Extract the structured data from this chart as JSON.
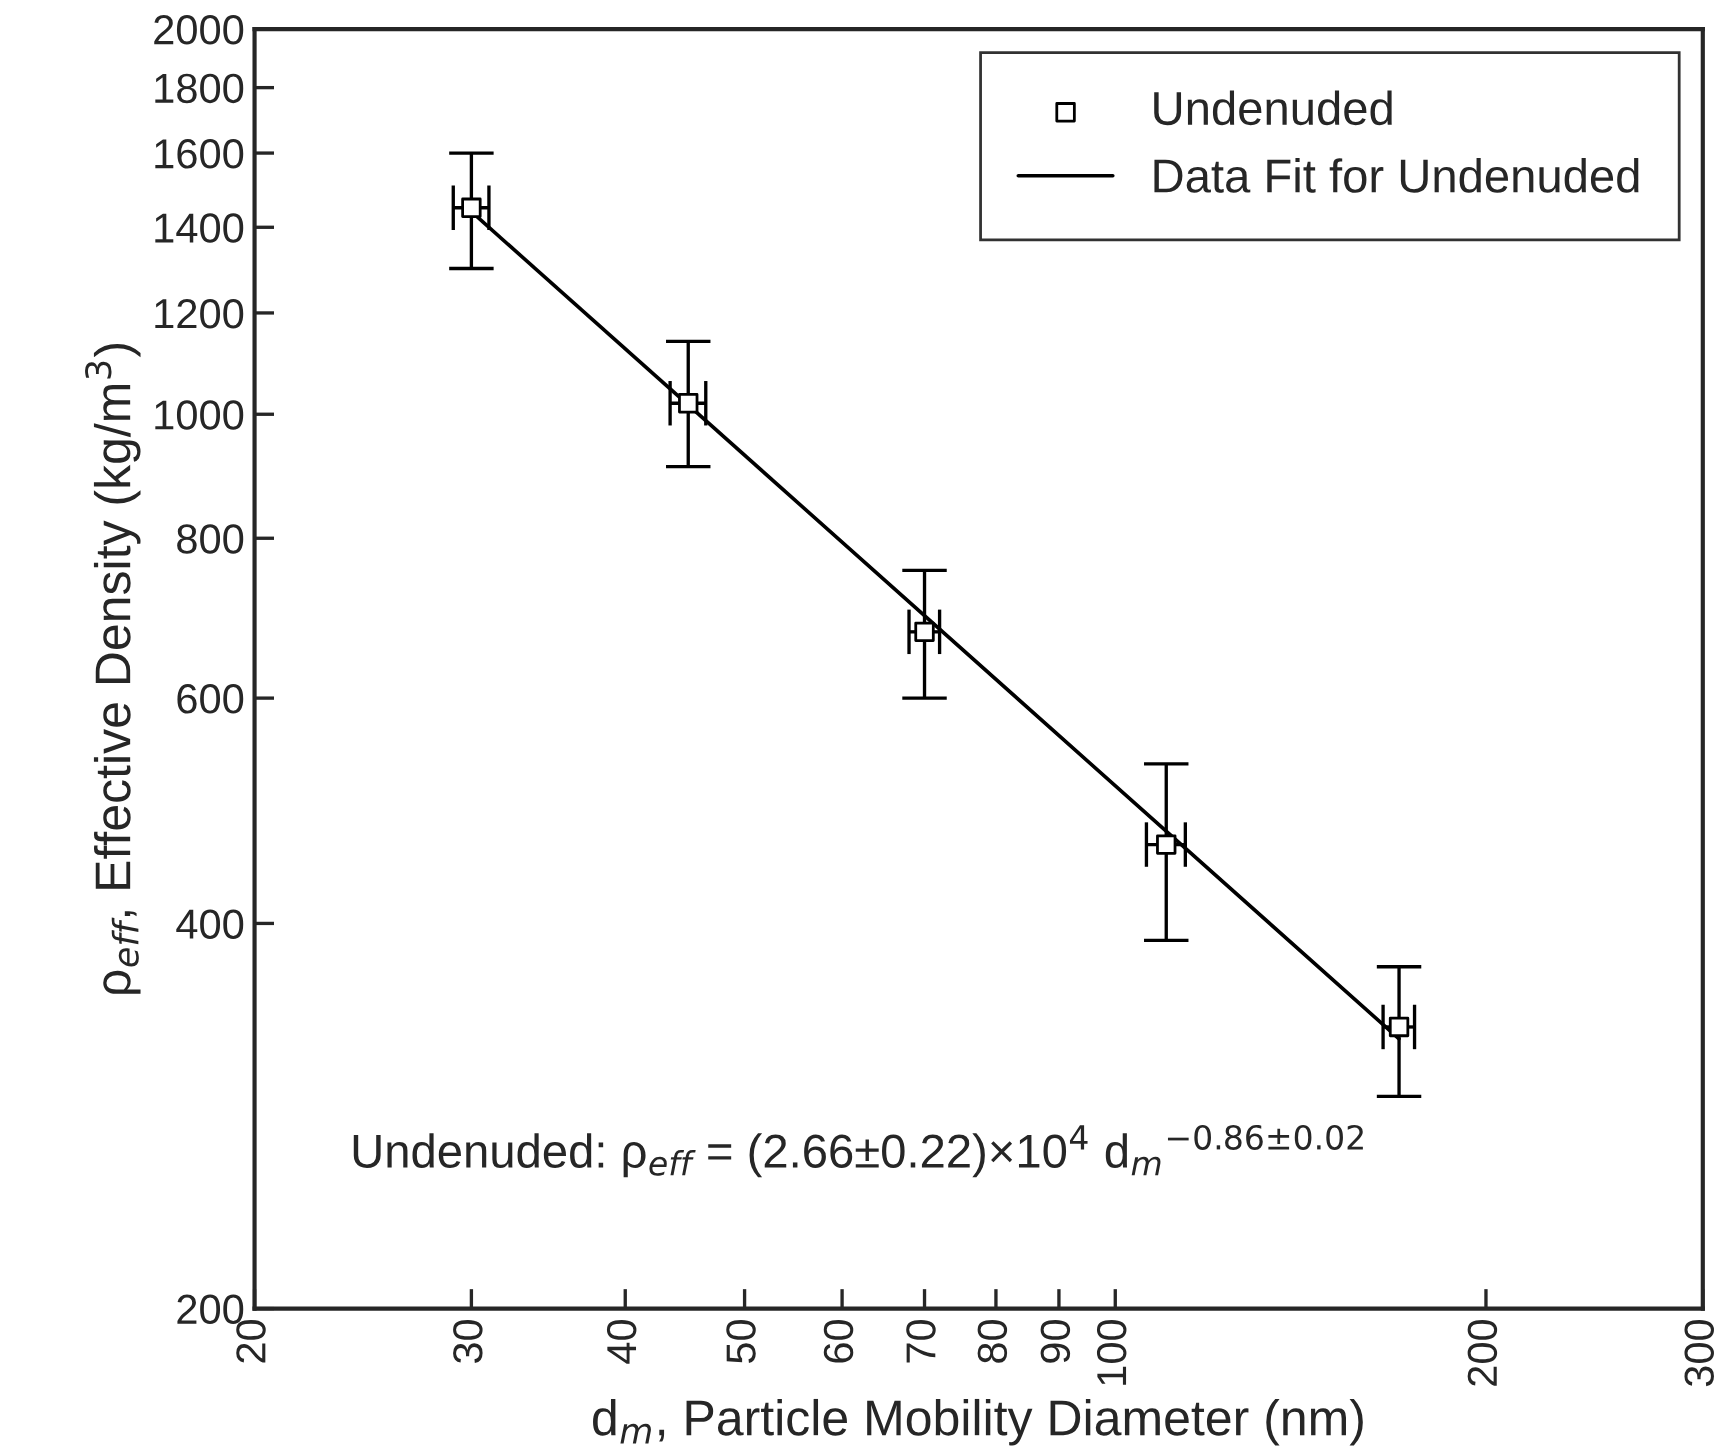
{
  "chart_data": {
    "type": "scatter",
    "xlabel": "d$_{m}$, Particle Mobility Diameter (nm)",
    "ylabel": "ρ$_{eff}$, Effective Density (kg/m$^{3}$)",
    "log": "xy",
    "xlim": [
      20,
      300
    ],
    "xticks": [
      20,
      30,
      40,
      50,
      60,
      70,
      80,
      90,
      100,
      200,
      300
    ],
    "ylim": [
      200,
      2000
    ],
    "yticks": [
      200,
      400,
      600,
      800,
      1000,
      1200,
      1400,
      1600,
      1800,
      2000
    ],
    "grid": false,
    "legend": "top right",
    "series": [
      {
        "name": "Undenuded",
        "marker": "square",
        "color": "#000000",
        "x": [
          30,
          45,
          70,
          110,
          170
        ],
        "values": [
          1450,
          1020,
          676,
          461,
          332
        ],
        "errors": [
          [
            1300,
            1600
          ],
          [
            910,
            1140
          ],
          [
            600,
            755
          ],
          [
            388,
            533
          ],
          [
            293,
            370
          ]
        ],
        "xerrors": [
          [
            29,
            31
          ],
          [
            43.5,
            46.5
          ],
          [
            68,
            72
          ],
          [
            106,
            114
          ],
          [
            165,
            175
          ]
        ]
      },
      {
        "type": "line",
        "name": "Data Fit for Undenuded",
        "color": "#000000",
        "x": [
          30,
          170
        ],
        "values": [
          1440,
          325
        ],
        "line_style": "solid"
      }
    ],
    "annotations": [
      "Undenuded: ρ$_{eff}$ = (2.66±0.22)×10$^{4}$ d$_{m}$$^{−0.86±0.02}$"
    ]
  }
}
